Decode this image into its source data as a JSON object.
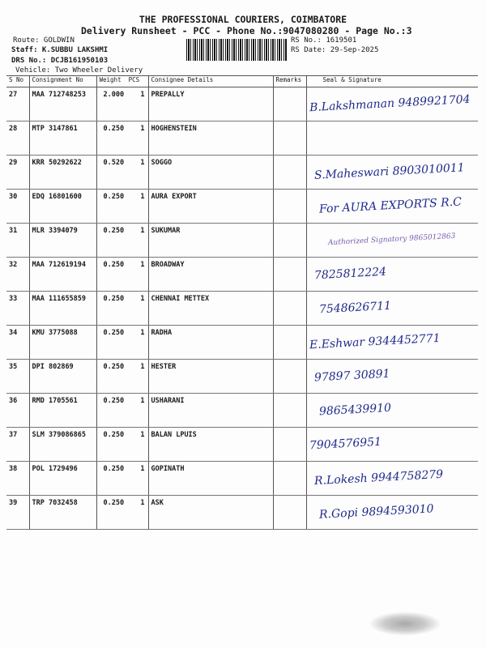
{
  "header": {
    "company": "THE PROFESSIONAL COURIERS, COIMBATORE",
    "subtitle": "Delivery Runsheet - PCC - Phone No.:9047080280 - Page No.:3",
    "route": "Route: GOLDWIN",
    "staff": "Staff: K.SUBBU LAKSHMI",
    "drs": "DRS No.: DCJB161950103",
    "vehicle": "Vehicle: Two Wheeler Delivery",
    "rs_no": "RS No.: 1619501",
    "rs_date": "RS Date: 29-Sep-2025"
  },
  "table": {
    "headers": [
      "S No",
      "Consignment No",
      "Weight",
      "PCS",
      "Consignee Details",
      "Remarks",
      "Seal & Signature"
    ],
    "rows": [
      [
        "27",
        "MAA 712748253",
        "2.000",
        "1",
        "PREPALLY"
      ],
      [
        "28",
        "MTP 3147861",
        "0.250",
        "1",
        "HOGHENSTEIN"
      ],
      [
        "29",
        "KRR 50292622",
        "0.520",
        "1",
        "SOGGO"
      ],
      [
        "30",
        "EDQ 16801600",
        "0.250",
        "1",
        "AURA EXPORT"
      ],
      [
        "31",
        "MLR 3394079",
        "0.250",
        "1",
        "SUKUMAR"
      ],
      [
        "32",
        "MAA 712619194",
        "0.250",
        "1",
        "BROADWAY"
      ],
      [
        "33",
        "MAA 111655859",
        "0.250",
        "1",
        "CHENNAI METTEX"
      ],
      [
        "34",
        "KMU 3775088",
        "0.250",
        "1",
        "RADHA"
      ],
      [
        "35",
        "DPI 802869",
        "0.250",
        "1",
        "HESTER"
      ],
      [
        "36",
        "RMD 1705561",
        "0.250",
        "1",
        "USHARANI"
      ],
      [
        "37",
        "SLM 379086865",
        "0.250",
        "1",
        "BALAN LPUIS"
      ],
      [
        "38",
        "POL 1729496",
        "0.250",
        "1",
        "GOPINATH"
      ],
      [
        "39",
        "TRP 7032458",
        "0.250",
        "1",
        "ASK"
      ]
    ]
  },
  "signatures": [
    "B.Lakshmanan 9489921704",
    "S.Maheswari 8903010011",
    "For AURA EXPORTS R.C",
    "Authorized Signatory 9865012863",
    "7825812224",
    "7548626711",
    "E.Eshwar 9344452771",
    "97897 30891",
    "9865439910",
    "7904576951",
    "R.Lokesh 9944758279",
    "R.Gopi 9894593010"
  ],
  "colors": {
    "ink": "#1f2a8a"
  }
}
